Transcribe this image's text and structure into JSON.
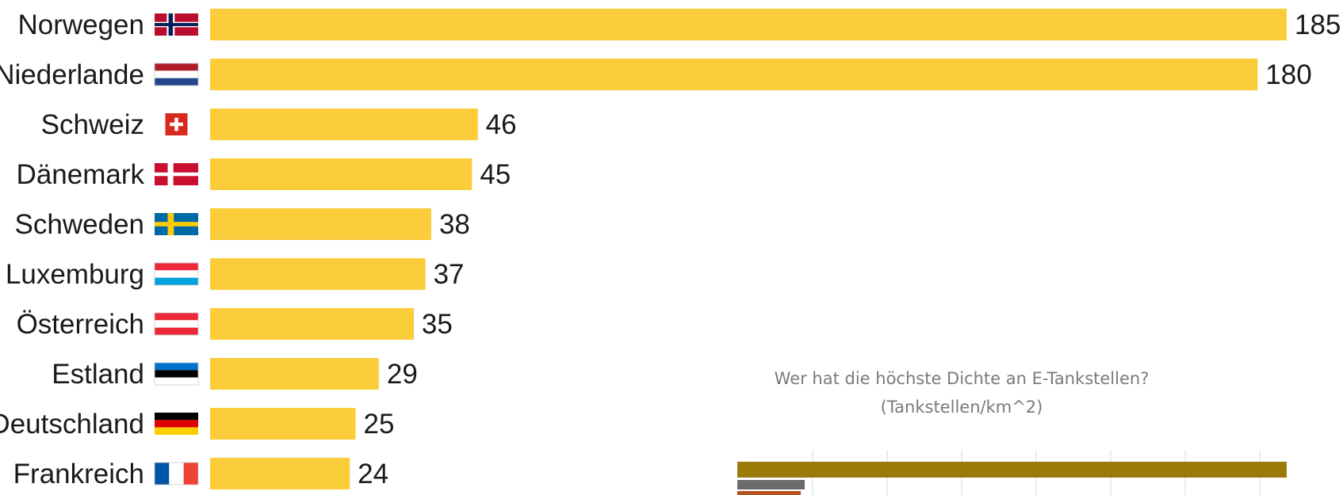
{
  "chart_data": [
    {
      "type": "bar",
      "orientation": "horizontal",
      "categories": [
        "Norwegen",
        "Niederlande",
        "Schweiz",
        "Dänemark",
        "Schweden",
        "Luxemburg",
        "Österreich",
        "Estland",
        "Deutschland",
        "Frankreich"
      ],
      "values": [
        185,
        180,
        46,
        45,
        38,
        37,
        35,
        29,
        25,
        24
      ],
      "bar_color": "#fbcd3b",
      "flags": [
        "norway-flag-icon",
        "netherlands-flag-icon",
        "switzerland-flag-icon",
        "denmark-flag-icon",
        "sweden-flag-icon",
        "luxembourg-flag-icon",
        "austria-flag-icon",
        "estonia-flag-icon",
        "germany-flag-icon",
        "france-flag-icon"
      ],
      "data_labels": true,
      "grid": false
    },
    {
      "type": "bar",
      "orientation": "horizontal",
      "title": "Wer hat die höchste Dichte an E-Tankstellen?",
      "subtitle": "(Tankstellen/km^2)",
      "partially_visible": true,
      "visible_bar_colors": [
        "#9c7a0a",
        "#6b6b6b",
        "#b5521e"
      ],
      "grid": true
    }
  ]
}
